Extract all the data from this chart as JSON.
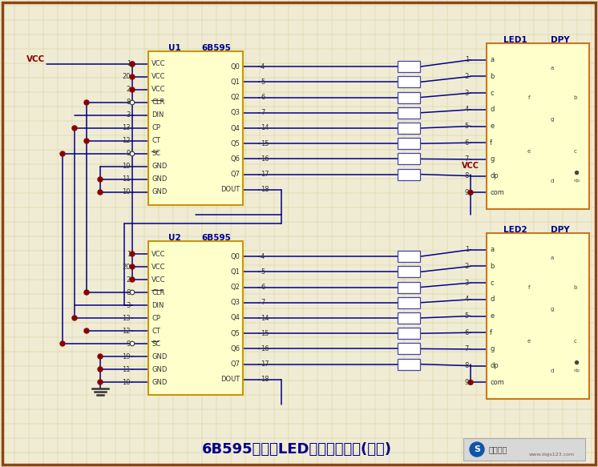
{
  "bg_color": "#f0ecd4",
  "grid_color": "#d0cc9a",
  "border_color": "#8B4513",
  "chip_fill": "#ffffcc",
  "chip_border": "#c8960a",
  "led_fill": "#ffffcc",
  "led_border": "#c87820",
  "wire_color": "#00008B",
  "dot_color": "#8B0000",
  "text_color": "#333333",
  "label_color": "#00008B",
  "title_color": "#00008B",
  "vcc_color": "#8B0000",
  "title": "6B595驱动的LED显示电路设计(共阳)",
  "title_fontsize": 13,
  "res_fill": "white",
  "res_border": "#4444aa",
  "left_pins": [
    "VCC",
    "VCC",
    "VCC",
    "CLR",
    "DIN",
    "CP",
    "CT",
    "SC",
    "GND",
    "GND",
    "GND"
  ],
  "left_nums": [
    "1",
    "20",
    "2",
    "8",
    "3",
    "13",
    "12",
    "9",
    "19",
    "11",
    "10"
  ],
  "right_pins": [
    "Q0",
    "Q1",
    "Q2",
    "Q3",
    "Q4",
    "Q5",
    "Q6",
    "Q7",
    "DOUT"
  ],
  "right_nums": [
    "4",
    "5",
    "6",
    "7",
    "14",
    "15",
    "16",
    "17",
    "18"
  ],
  "led_pins": [
    "a",
    "b",
    "c",
    "d",
    "e",
    "f",
    "g",
    "dp",
    "com"
  ],
  "led_nums": [
    "1",
    "2",
    "3",
    "4",
    "5",
    "6",
    "7",
    "8",
    "9"
  ]
}
